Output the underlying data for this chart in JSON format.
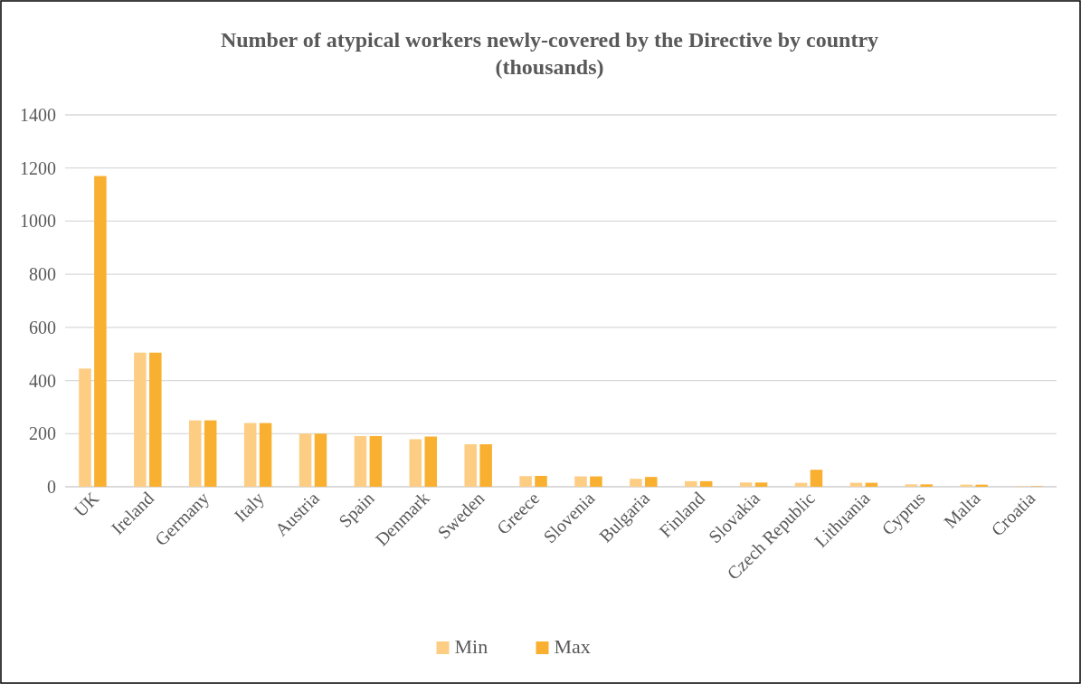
{
  "chart_data": {
    "type": "bar",
    "title": "Number of atypical workers newly-covered by the Directive by country (thousands)",
    "categories": [
      "UK",
      "Ireland",
      "Germany",
      "Italy",
      "Austria",
      "Spain",
      "Denmark",
      "Sweden",
      "Greece",
      "Slovenia",
      "Bulgaria",
      "Finland",
      "Slovakia",
      "Czech Republic",
      "Lithuania",
      "Cyprus",
      "Malta",
      "Croatia"
    ],
    "series": [
      {
        "name": "Min",
        "color": "#fdcd84",
        "values": [
          445,
          505,
          250,
          240,
          200,
          191,
          179,
          160,
          40,
          39,
          30,
          21,
          16,
          15,
          15,
          9,
          8,
          2
        ]
      },
      {
        "name": "Max",
        "color": "#f9b031",
        "values": [
          1170,
          505,
          250,
          240,
          200,
          191,
          189,
          160,
          41,
          39,
          37,
          21,
          16,
          64,
          15,
          9,
          8,
          2
        ]
      }
    ],
    "ylim": [
      0,
      1400
    ],
    "yticks": [
      0,
      200,
      400,
      600,
      800,
      1000,
      1200,
      1400
    ],
    "grid": "y",
    "legend": "bottom"
  }
}
